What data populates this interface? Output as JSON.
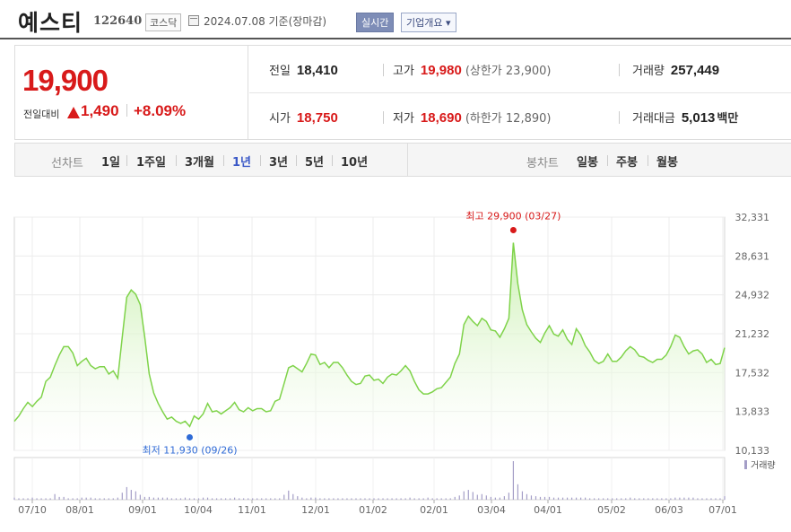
{
  "header": {
    "name": "예스티",
    "code": "122640",
    "market": "코스닥",
    "date": "2024.07.08 기준(장마감)",
    "realtime_label": "실시간",
    "company_label": "기업개요 ▾"
  },
  "summary": {
    "price": "19,900",
    "change_label": "전일대비",
    "change_amount": "1,490",
    "change_percent": "+8.09%",
    "prev_label": "전일",
    "prev": "18,410",
    "open_label": "시가",
    "open": "18,750",
    "high_label": "고가",
    "high": "19,980",
    "upper_limit": "(상한가 23,900)",
    "low_label": "저가",
    "low": "18,690",
    "lower_limit": "(하한가 12,890)",
    "volume_label": "거래량",
    "volume": "257,449",
    "amount_label": "거래대금",
    "amount": "5,013",
    "amount_unit": "백만"
  },
  "toolbar": {
    "line_label": "선차트",
    "periods": [
      "1일",
      "1주일",
      "3개월",
      "1년",
      "3년",
      "5년",
      "10년"
    ],
    "selected_period": "1년",
    "candle_label": "봉차트",
    "candles": [
      "일봉",
      "주봉",
      "월봉"
    ]
  },
  "colors": {
    "up": "#d81a1a",
    "line": "#7fd34a",
    "fill_top": "#c7efac",
    "low_marker": "#2f6bd6",
    "volume": "#a49ec7"
  },
  "chart_data": {
    "type": "area",
    "y_ticks": [
      "32,331",
      "28,631",
      "24,932",
      "21,232",
      "17,532",
      "13,833",
      "10,133"
    ],
    "ylim": [
      10133,
      32331
    ],
    "x_ticks": [
      "07/10",
      "08/01",
      "09/01",
      "10/04",
      "11/01",
      "12/01",
      "01/02",
      "02/01",
      "03/04",
      "04/01",
      "05/02",
      "06/03",
      "07/01"
    ],
    "grid": true,
    "high_annotation": "최고 29,900 (03/27)",
    "low_annotation": "최저 11,930 (09/26)",
    "volume_legend": "거래량",
    "series": [
      {
        "values": [
          12900,
          13400,
          14100,
          14700,
          14300,
          14800,
          15200,
          16700,
          17100,
          18200,
          19200,
          20000,
          20000,
          19400,
          18200,
          18600,
          18900,
          18200,
          17900,
          18100,
          18100,
          17400,
          17700,
          17000,
          20900,
          24700,
          25400,
          25000,
          24000,
          20900,
          17400,
          15600,
          14600,
          13800,
          13100,
          13300,
          12900,
          12700,
          12900,
          12400,
          13400,
          13100,
          13600,
          14600,
          13800,
          13900,
          13600,
          13900,
          14200,
          14700,
          14000,
          13800,
          14200,
          13900,
          14100,
          14100,
          13800,
          13900,
          14800,
          15000,
          16500,
          18000,
          18200,
          17900,
          17600,
          18400,
          19300,
          19200,
          18300,
          18500,
          18000,
          18500,
          18500,
          18000,
          17300,
          16700,
          16400,
          16500,
          17200,
          17300,
          16800,
          16900,
          16500,
          17100,
          17400,
          17300,
          17700,
          18200,
          17700,
          16700,
          15900,
          15500,
          15500,
          15700,
          16000,
          16100,
          16600,
          17100,
          18400,
          19300,
          22100,
          22900,
          22400,
          22000,
          22700,
          22400,
          21600,
          21500,
          20900,
          21700,
          22700,
          29900,
          26000,
          23500,
          22100,
          21400,
          20800,
          20400,
          21300,
          22000,
          21200,
          21000,
          21600,
          20700,
          20200,
          21700,
          21100,
          20100,
          19500,
          18700,
          18400,
          18600,
          19300,
          18600,
          18600,
          19000,
          19600,
          20000,
          19700,
          19100,
          19000,
          18700,
          18500,
          18800,
          18800,
          19200,
          20000,
          21100,
          20900,
          20000,
          19300,
          19600,
          19700,
          19300,
          18500,
          18800,
          18300,
          18400,
          19900
        ]
      },
      {
        "name": "거래량",
        "values": [
          3,
          2,
          2,
          2,
          3,
          2,
          2,
          2,
          2,
          8,
          4,
          4,
          2,
          2,
          2,
          3,
          3,
          3,
          2,
          2,
          2,
          2,
          2,
          3,
          10,
          18,
          14,
          12,
          7,
          4,
          4,
          3,
          3,
          3,
          3,
          2,
          2,
          2,
          3,
          2,
          2,
          2,
          3,
          3,
          2,
          2,
          2,
          2,
          2,
          3,
          2,
          2,
          2,
          2,
          2,
          2,
          2,
          2,
          2,
          2,
          7,
          13,
          8,
          5,
          3,
          2,
          3,
          3,
          2,
          2,
          2,
          2,
          2,
          2,
          2,
          2,
          2,
          2,
          2,
          2,
          2,
          2,
          2,
          2,
          2,
          2,
          2,
          2,
          3,
          2,
          2,
          2,
          3,
          2,
          2,
          2,
          2,
          2,
          4,
          6,
          12,
          14,
          11,
          7,
          8,
          6,
          4,
          3,
          3,
          5,
          10,
          55,
          22,
          12,
          8,
          6,
          5,
          4,
          4,
          4,
          3,
          3,
          3,
          3,
          3,
          3,
          3,
          3,
          2,
          2,
          2,
          2,
          2,
          2,
          2,
          2,
          2,
          3,
          2,
          2,
          2,
          2,
          2,
          2,
          2,
          2,
          2,
          3,
          3,
          3,
          3,
          3,
          2,
          2,
          2,
          2,
          2,
          2,
          5
        ]
      }
    ]
  }
}
